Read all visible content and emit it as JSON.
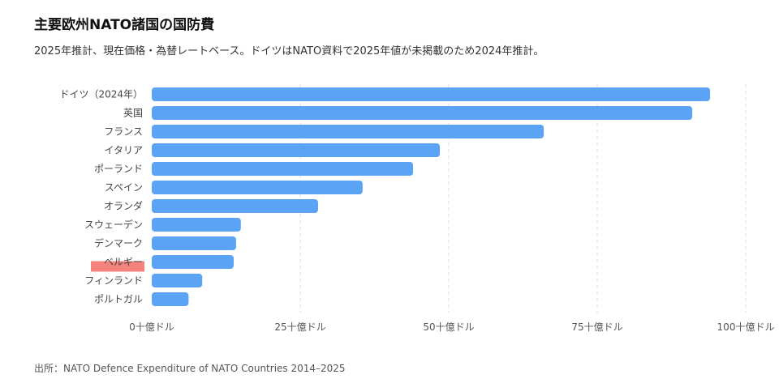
{
  "header": {
    "title": "主要欧州NATO諸国の国防費",
    "subtitle": "2025年推計、現在価格・為替レートベース。ドイツはNATO資料で2025年値が未掲載のため2024年推計。"
  },
  "footer": {
    "source": "出所：NATO Defence Expenditure of NATO Countries 2014–2025"
  },
  "colors": {
    "bar": "#5ba3f5",
    "highlight": "#f4837d"
  },
  "chart_data": {
    "type": "bar",
    "orientation": "horizontal",
    "categories": [
      "ドイツ（2024年）",
      "英国",
      "フランス",
      "イタリア",
      "ポーランド",
      "スペイン",
      "オランダ",
      "スウェーデン",
      "デンマーク",
      "ベルギー",
      "フィンランド",
      "ポルトガル"
    ],
    "values": [
      94,
      91,
      66,
      48.5,
      44,
      35.5,
      28,
      15,
      14.2,
      13.8,
      8.5,
      6.2
    ],
    "unit": "十億ドル",
    "xlim": [
      0,
      100
    ],
    "ticks": [
      0,
      25,
      50,
      75,
      100
    ],
    "tick_labels": [
      "0十億ドル",
      "25十億ドル",
      "50十億ドル",
      "75十億ドル",
      "100十億ドル"
    ],
    "grid": true,
    "highlighted_category": "ベルギー"
  }
}
